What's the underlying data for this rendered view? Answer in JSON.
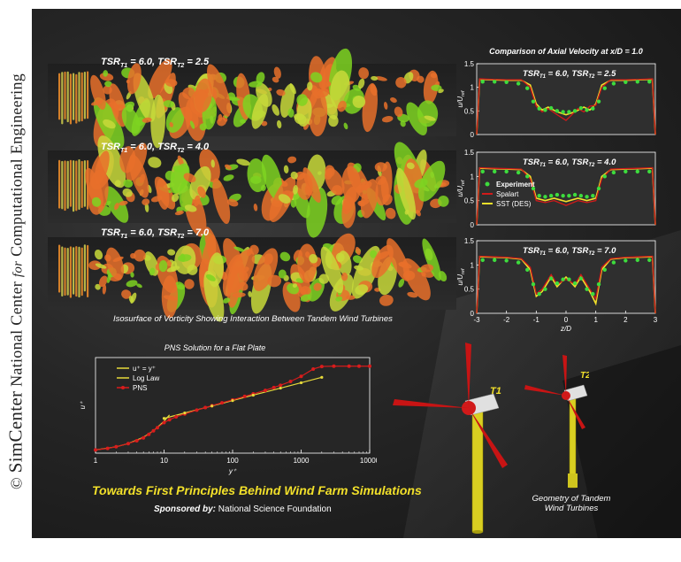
{
  "copyright": {
    "symbol": "©",
    "brand": "SimCenter",
    "org_prefix": "National Center",
    "org_for": "for",
    "org_suffix": "Computational Engineering"
  },
  "wake_panels": [
    {
      "label": "TSR",
      "sub1": "T1",
      "mid": " = 6.0, TSR",
      "sub2": "T2",
      "tail": " = 2.5"
    },
    {
      "label": "TSR",
      "sub1": "T1",
      "mid": " = 6.0, TSR",
      "sub2": "T2",
      "tail": " = 4.0"
    },
    {
      "label": "TSR",
      "sub1": "T1",
      "mid": " = 6.0, TSR",
      "sub2": "T2",
      "tail": " = 7.0"
    }
  ],
  "wake_caption": "Isosurface of Vorticity Showing Interaction Between Tandem Wind Turbines",
  "chart_data": [
    {
      "type": "line",
      "title": "Comparison of Axial Velocity at x/D = 1.0",
      "panel_label": {
        "label": "TSR",
        "sub1": "T1",
        "mid": " = 6.0, TSR",
        "sub2": "T2",
        "tail": " = 2.5"
      },
      "ylabel": "u/U",
      "ylabel_sub": "ref",
      "xlabel": "",
      "xlim": [
        -3,
        3
      ],
      "ylim": [
        0,
        1.5
      ],
      "yticks": [
        "0",
        "0.5",
        "1",
        "1.5"
      ],
      "xticks": [],
      "series": [
        {
          "x": [
            -3,
            -2.9,
            -2.5,
            -2,
            -1.5,
            -1.2,
            -1.0,
            -0.8,
            -0.6,
            -0.3,
            0,
            0.3,
            0.6,
            0.8,
            1.0,
            1.2,
            1.5,
            2,
            2.5,
            2.9,
            3
          ],
          "y": [
            0,
            1.17,
            1.16,
            1.15,
            1.15,
            1.05,
            0.65,
            0.52,
            0.58,
            0.48,
            0.42,
            0.48,
            0.58,
            0.52,
            0.65,
            1.05,
            1.15,
            1.15,
            1.16,
            1.17,
            0
          ]
        },
        {
          "x": [
            -3,
            -2.9,
            -2.5,
            -2,
            -1.5,
            -1.2,
            -1.0,
            -0.8,
            -0.6,
            -0.3,
            0,
            0.2,
            0.4,
            0.6,
            0.8,
            1.0,
            1.2,
            1.5,
            2,
            2.5,
            2.9,
            3
          ],
          "y": [
            0,
            1.18,
            1.17,
            1.16,
            1.16,
            1.0,
            0.6,
            0.48,
            0.55,
            0.42,
            0.3,
            0.42,
            0.55,
            0.48,
            0.6,
            0.62,
            1.0,
            1.16,
            1.16,
            1.17,
            1.18,
            0
          ]
        },
        {
          "x": [
            -2.8,
            -2.4,
            -2.0,
            -1.6,
            -1.3,
            -1.1,
            -0.9,
            -0.7,
            -0.5,
            -0.3,
            -0.1,
            0.1,
            0.3,
            0.5,
            0.7,
            0.9,
            1.1,
            1.3,
            1.6,
            2.0,
            2.4,
            2.8
          ],
          "y": [
            1.12,
            1.12,
            1.11,
            1.08,
            0.98,
            0.7,
            0.55,
            0.52,
            0.56,
            0.5,
            0.48,
            0.48,
            0.5,
            0.56,
            0.52,
            0.55,
            0.7,
            0.98,
            1.08,
            1.11,
            1.12,
            1.12
          ]
        }
      ]
    },
    {
      "type": "line",
      "title": "",
      "panel_label": {
        "label": "TSR",
        "sub1": "T1",
        "mid": " = 6.0, TSR",
        "sub2": "T2",
        "tail": " = 4.0"
      },
      "ylabel": "u/U",
      "ylabel_sub": "ref",
      "xlabel": "",
      "xlim": [
        -3,
        3
      ],
      "ylim": [
        0,
        1.5
      ],
      "yticks": [
        "0",
        "0.5",
        "1",
        "1.5"
      ],
      "xticks": [],
      "legend": [
        "Experiment",
        "Spalart",
        "SST (DES)"
      ],
      "series": [
        {
          "name": "SST (DES)",
          "x": [
            -3,
            -2.9,
            -2.5,
            -2,
            -1.5,
            -1.2,
            -1.0,
            -0.7,
            -0.4,
            0,
            0.4,
            0.7,
            1.0,
            1.2,
            1.5,
            2,
            2.5,
            2.9,
            3
          ],
          "y": [
            0,
            1.17,
            1.16,
            1.15,
            1.14,
            1.0,
            0.55,
            0.5,
            0.55,
            0.48,
            0.55,
            0.5,
            0.55,
            1.0,
            1.14,
            1.15,
            1.16,
            1.17,
            0
          ]
        },
        {
          "name": "Spalart",
          "x": [
            -3,
            -2.9,
            -2.5,
            -2,
            -1.5,
            -1.2,
            -1.0,
            -0.7,
            -0.4,
            0,
            0.4,
            0.7,
            1.0,
            1.2,
            1.5,
            2,
            2.5,
            2.9,
            3
          ],
          "y": [
            0,
            1.18,
            1.17,
            1.16,
            1.15,
            0.95,
            0.5,
            0.46,
            0.5,
            0.4,
            0.5,
            0.46,
            0.5,
            0.95,
            1.15,
            1.16,
            1.17,
            1.18,
            0
          ]
        },
        {
          "name": "Experiment",
          "x": [
            -2.8,
            -2.4,
            -2.0,
            -1.6,
            -1.3,
            -1.1,
            -0.9,
            -0.7,
            -0.5,
            -0.3,
            -0.1,
            0.1,
            0.3,
            0.5,
            0.7,
            0.9,
            1.1,
            1.3,
            1.6,
            2.0,
            2.4,
            2.8
          ],
          "y": [
            1.1,
            1.1,
            1.1,
            1.08,
            1.0,
            0.75,
            0.6,
            0.58,
            0.6,
            0.62,
            0.6,
            0.6,
            0.62,
            0.6,
            0.58,
            0.6,
            0.75,
            1.0,
            1.08,
            1.1,
            1.1,
            1.1
          ]
        }
      ]
    },
    {
      "type": "line",
      "title": "",
      "panel_label": {
        "label": "TSR",
        "sub1": "T1",
        "mid": " = 6.0, TSR",
        "sub2": "T2",
        "tail": " = 7.0"
      },
      "ylabel": "u/U",
      "ylabel_sub": "ref",
      "xlabel": "z/D",
      "xlim": [
        -3,
        3
      ],
      "ylim": [
        0,
        1.5
      ],
      "yticks": [
        "0",
        "0.5",
        "1",
        "1.5"
      ],
      "xticks": [
        "-3",
        "-2",
        "-1",
        "0",
        "1",
        "2",
        "3"
      ],
      "series": [
        {
          "x": [
            -3,
            -2.9,
            -2.5,
            -2,
            -1.5,
            -1.2,
            -1.0,
            -0.8,
            -0.5,
            -0.3,
            0,
            0.3,
            0.5,
            0.8,
            1.0,
            1.2,
            1.5,
            2,
            2.5,
            2.9,
            3
          ],
          "y": [
            0,
            1.17,
            1.16,
            1.15,
            1.12,
            0.9,
            0.35,
            0.45,
            0.75,
            0.55,
            0.75,
            0.55,
            0.75,
            0.45,
            0.2,
            0.9,
            1.12,
            1.15,
            1.16,
            1.17,
            0
          ]
        },
        {
          "x": [
            -3,
            -2.9,
            -2.5,
            -2,
            -1.5,
            -1.2,
            -1.0,
            -0.8,
            -0.5,
            -0.3,
            0,
            0.3,
            0.5,
            0.8,
            1.0,
            1.2,
            1.5,
            2,
            2.5,
            2.9,
            3
          ],
          "y": [
            0,
            1.18,
            1.17,
            1.16,
            1.13,
            0.95,
            0.4,
            0.5,
            0.8,
            0.6,
            0.7,
            0.6,
            0.8,
            0.5,
            0.3,
            0.95,
            1.13,
            1.16,
            1.17,
            1.18,
            0
          ]
        },
        {
          "x": [
            -2.8,
            -2.4,
            -2.0,
            -1.6,
            -1.3,
            -1.1,
            -0.9,
            -0.7,
            -0.5,
            -0.3,
            -0.1,
            0.1,
            0.3,
            0.5,
            0.7,
            0.9,
            1.1,
            1.3,
            1.6,
            2.0,
            2.4,
            2.8
          ],
          "y": [
            1.1,
            1.1,
            1.09,
            1.05,
            0.9,
            0.6,
            0.4,
            0.5,
            0.72,
            0.62,
            0.7,
            0.7,
            0.62,
            0.72,
            0.5,
            0.4,
            0.6,
            0.9,
            1.05,
            1.09,
            1.1,
            1.1
          ]
        }
      ]
    },
    {
      "type": "line",
      "title": "PNS Solution for a Flat Plate",
      "xlabel": "y⁺",
      "ylabel": "u⁺",
      "xscale": "log",
      "xlim": [
        1,
        10000
      ],
      "ylim": [
        0,
        30
      ],
      "xticks": [
        "1",
        "10",
        "100",
        "1000",
        "10000"
      ],
      "legend": [
        "u⁺ = y⁺",
        "Log Law",
        "PNS"
      ],
      "series": [
        {
          "name": "u⁺ = y⁺",
          "x": [
            1,
            2,
            3,
            5,
            7,
            10,
            12
          ],
          "y": [
            1,
            2,
            3,
            5,
            7,
            10,
            12
          ]
        },
        {
          "name": "Log Law",
          "x": [
            10,
            20,
            50,
            100,
            200,
            500,
            1000,
            2000
          ],
          "y": [
            10.9,
            12.6,
            14.8,
            16.5,
            18.2,
            20.4,
            22.1,
            23.8
          ]
        },
        {
          "name": "PNS",
          "x": [
            1,
            1.5,
            2,
            3,
            4,
            5,
            6,
            7,
            8,
            10,
            12,
            15,
            20,
            30,
            40,
            50,
            70,
            100,
            150,
            200,
            300,
            400,
            500,
            700,
            1000,
            1500,
            2000,
            3000,
            5000,
            7000,
            10000
          ],
          "y": [
            1,
            1.5,
            2,
            3,
            3.9,
            4.8,
            5.9,
            7,
            8,
            9.6,
            10.5,
            11.4,
            12.3,
            13.5,
            14.3,
            14.9,
            15.8,
            16.7,
            17.8,
            18.6,
            19.7,
            20.6,
            21.3,
            22.5,
            24.1,
            26.4,
            27.2,
            27.3,
            27.3,
            27.3,
            27.3
          ]
        }
      ]
    }
  ],
  "main_title": "Towards First Principles Behind Wind Farm Simulations",
  "sponsor": {
    "label": "Sponsored by:",
    "name": "National Science Foundation"
  },
  "turbines": {
    "t1": "T1",
    "t2": "T2",
    "caption_line1": "Geometry of Tandem",
    "caption_line2": "Wind Turbines"
  },
  "colors": {
    "sst": "#f2e02a",
    "spalart": "#d11a1a",
    "experiment": "#3ddc3d",
    "wake_orange": "#e8702a",
    "wake_green": "#7ed321",
    "pns": "#d91c1c",
    "loglaw": "#e6d93a",
    "linear": "#e6d93a"
  }
}
